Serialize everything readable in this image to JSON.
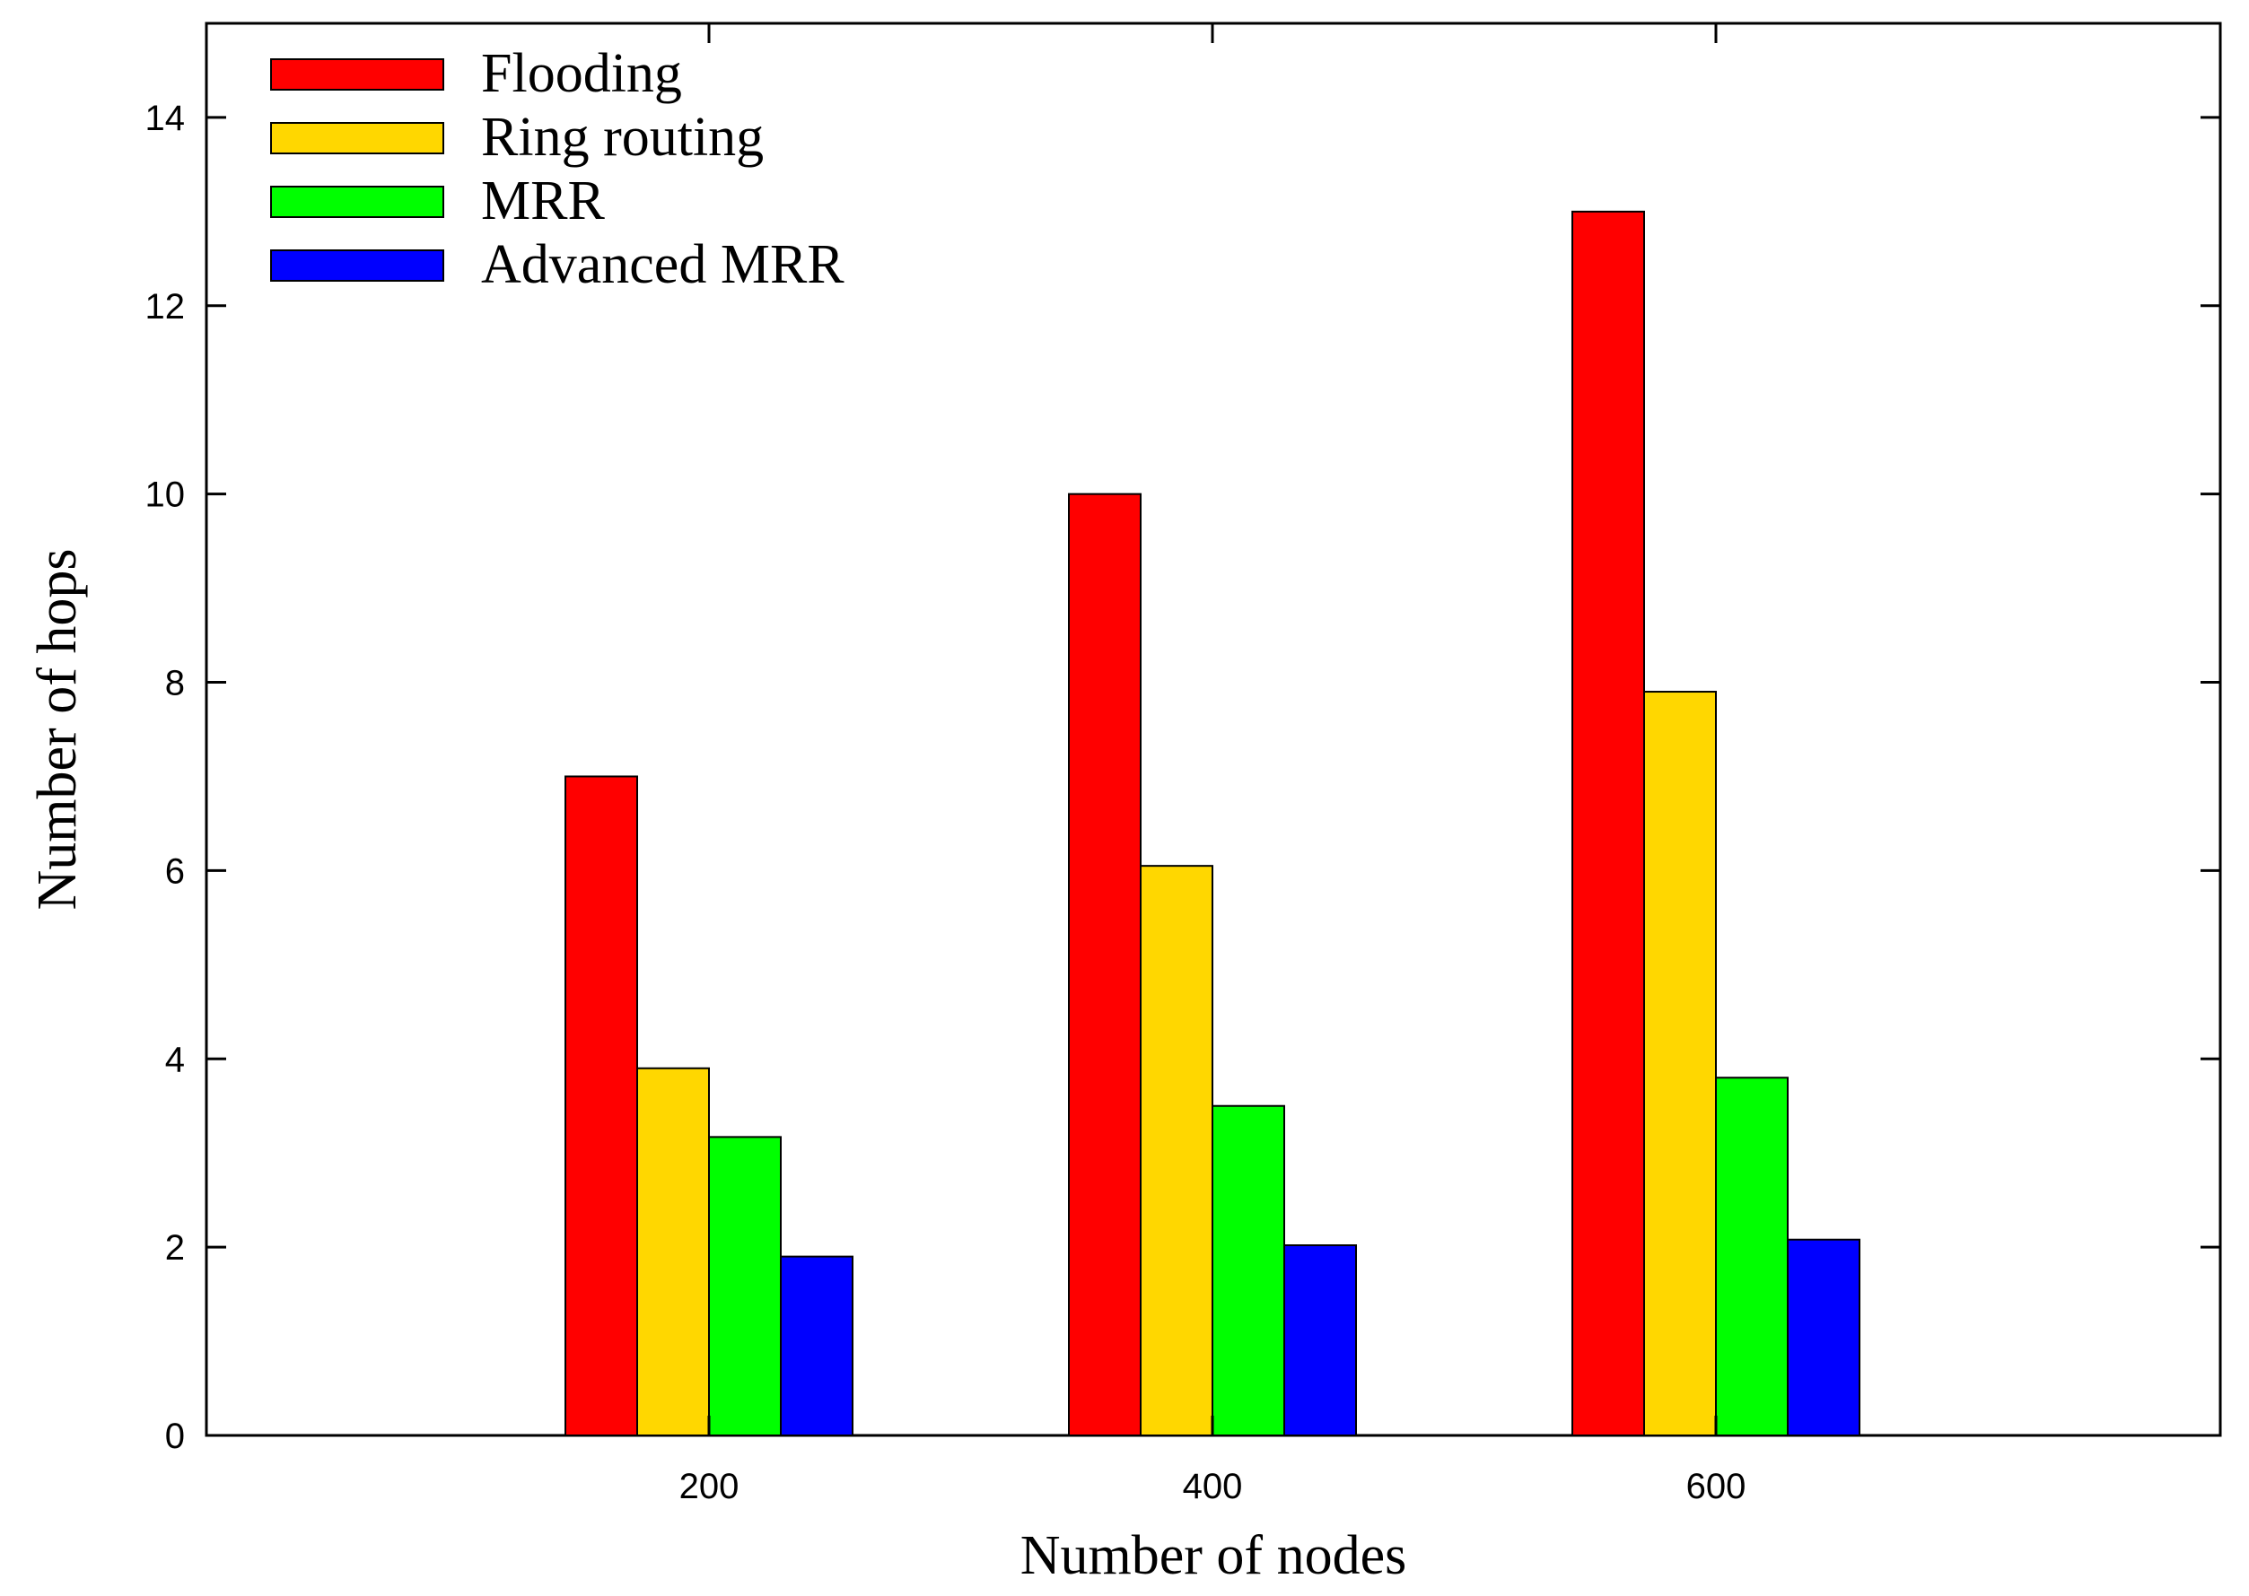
{
  "chart_data": {
    "type": "bar",
    "categories": [
      "200",
      "400",
      "600"
    ],
    "series": [
      {
        "name": "Flooding",
        "values": [
          7.0,
          10.0,
          13.0
        ],
        "color": "#ff0000"
      },
      {
        "name": "Ring routing",
        "values": [
          3.9,
          6.05,
          7.9
        ],
        "color": "#ffd700"
      },
      {
        "name": "MRR",
        "values": [
          3.17,
          3.5,
          3.8
        ],
        "color": "#00ff00"
      },
      {
        "name": "Advanced MRR",
        "values": [
          1.9,
          2.02,
          2.08
        ],
        "color": "#0000ff"
      }
    ],
    "xlabel": "Number of nodes",
    "ylabel": "Number of hops",
    "ylim": [
      0,
      15
    ],
    "yticks": [
      0,
      2,
      4,
      6,
      8,
      10,
      12,
      14
    ],
    "grid": false,
    "legend_position": "top-left"
  }
}
